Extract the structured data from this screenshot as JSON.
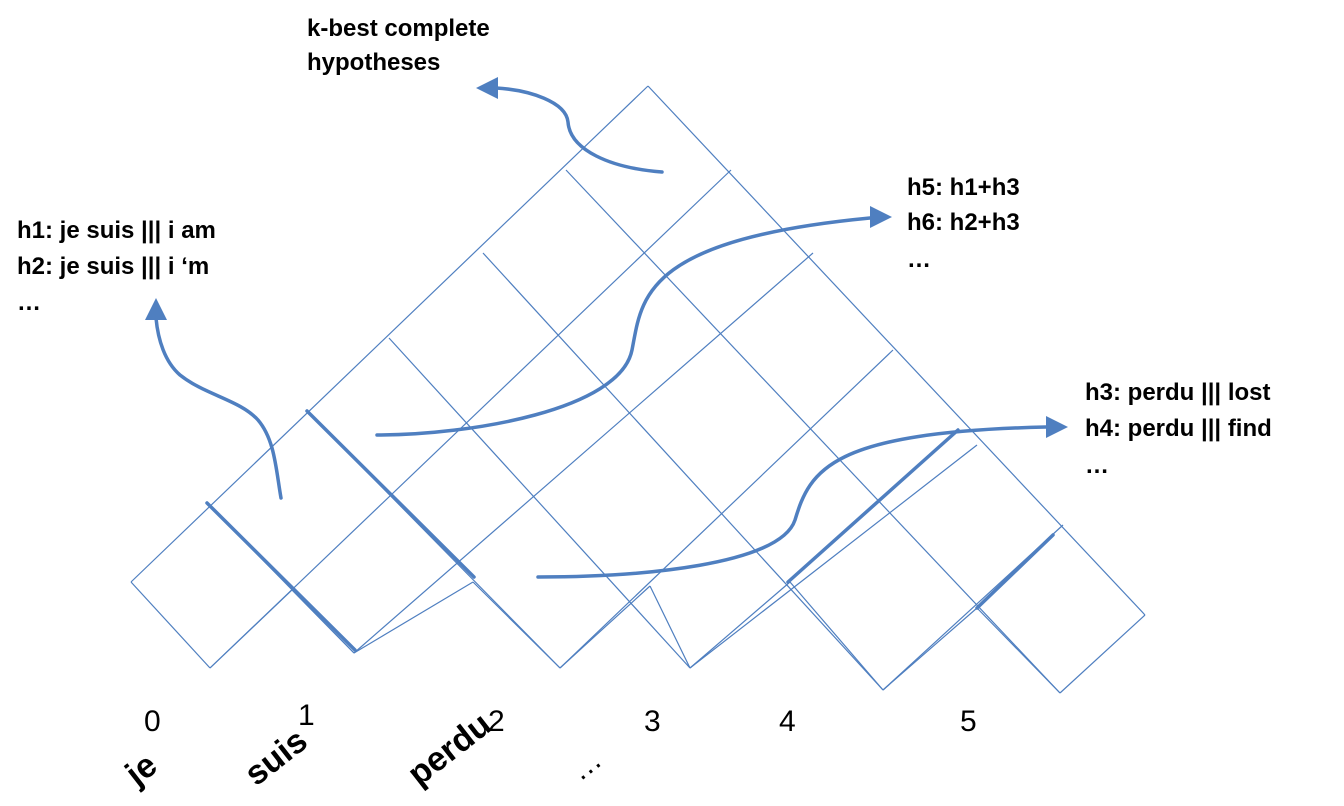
{
  "annotations": {
    "top": [
      "k-best complete",
      "hypotheses"
    ],
    "left": [
      "h1: je suis ||| i am",
      "h2: je suis ||| i ‘m",
      "…"
    ],
    "middle_right": [
      "h5: h1+h3",
      "h6: h2+h3",
      "…"
    ],
    "right": [
      "h3: perdu ||| lost",
      "h4: perdu ||| find",
      "…"
    ]
  },
  "positions": [
    "0",
    "1",
    "2",
    "3",
    "4",
    "5"
  ],
  "words": [
    "je",
    "suis",
    "perdu"
  ],
  "word_ellipsis": "…",
  "colors": {
    "grid": "#4f7fc0",
    "text": "#000000"
  }
}
